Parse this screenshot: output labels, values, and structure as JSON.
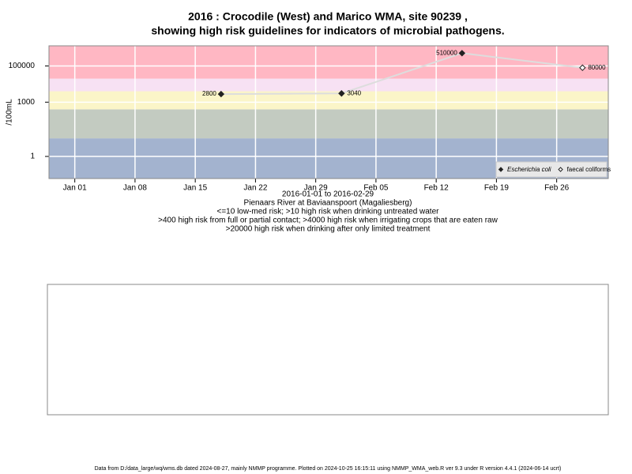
{
  "chart_data": {
    "type": "scatter",
    "title": "2016 : Crocodile (West) and Marico WMA, site 90239 ,",
    "subtitle": "showing high risk guidelines for indicators of microbial pathogens.",
    "y_label": "/100mL",
    "x_label_lines": [
      "2016-01-01 to 2016-02-29",
      "Pienaars River at Baviaanspoort (Magaliesberg)",
      "<=10 low-med risk; >10 high risk when drinking untreated water",
      ">400 high risk from full or partial contact; >4000 high risk when irrigating crops that are eaten raw",
      ">20000 high risk when drinking after only limited treatment"
    ],
    "log_y": true,
    "grid": true,
    "legend_position": "bottom-right",
    "xlim": [
      "2015-12-29",
      "2016-03-03"
    ],
    "xticks": [
      {
        "value": "2016-01-01",
        "label": "Jan 01"
      },
      {
        "value": "2016-01-08",
        "label": "Jan 08"
      },
      {
        "value": "2016-01-15",
        "label": "Jan 15"
      },
      {
        "value": "2016-01-22",
        "label": "Jan 22"
      },
      {
        "value": "2016-01-29",
        "label": "Jan 29"
      },
      {
        "value": "2016-02-05",
        "label": "Feb 05"
      },
      {
        "value": "2016-02-12",
        "label": "Feb 12"
      },
      {
        "value": "2016-02-19",
        "label": "Feb 19"
      },
      {
        "value": "2016-02-26",
        "label": "Feb 26"
      }
    ],
    "ylim": [
      0.06,
      1300000
    ],
    "yticks": [
      1,
      1000,
      100000
    ],
    "band_thresholds": [
      10,
      400,
      4000,
      20000
    ],
    "band_colors": [
      "#a3b3cf",
      "#c3cbc1",
      "#fbf5c8",
      "#f7e1f3",
      "#ffb7c3"
    ],
    "line_color": "#dddddd",
    "series": [
      {
        "name": "Escherichia coli",
        "color": "#222222",
        "filled": true,
        "x": [
          "2016-01-18",
          "2016-02-01",
          "2016-02-15"
        ],
        "values": [
          2800,
          3040,
          510000
        ]
      },
      {
        "name": "faecal coliforms",
        "color": "#222222",
        "filled": false,
        "x": [
          "2016-02-29"
        ],
        "values": [
          80000
        ]
      }
    ],
    "footer": "Data from D:/data_large/wq/wms.db dated 2024-08-27, mainly NMMP programme. Plotted on 2024-10-25 16:15:11 using NMMP_WMA_web.R ver 9.3 under R version 4.4.1 (2024-06-14 ucrt)"
  }
}
